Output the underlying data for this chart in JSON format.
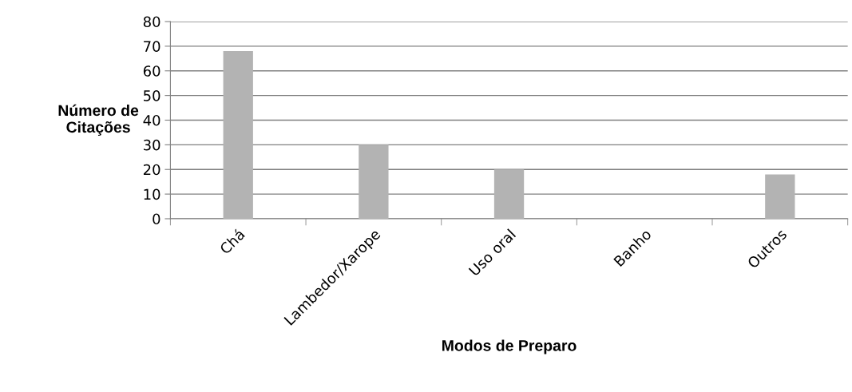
{
  "chart_data": {
    "type": "bar",
    "xlabel": "Modos de Preparo",
    "ylabel": "Número de\nCitações",
    "categories": [
      "Chá",
      "Lambedor/Xarope",
      "Uso oral",
      "Banho",
      "Outros"
    ],
    "values": [
      68,
      30,
      20,
      0,
      18
    ],
    "color": "#b3b3b3",
    "ylim": [
      0,
      80
    ],
    "yticks": [
      0,
      10,
      20,
      30,
      40,
      50,
      60,
      70,
      80
    ],
    "grid": "y"
  }
}
